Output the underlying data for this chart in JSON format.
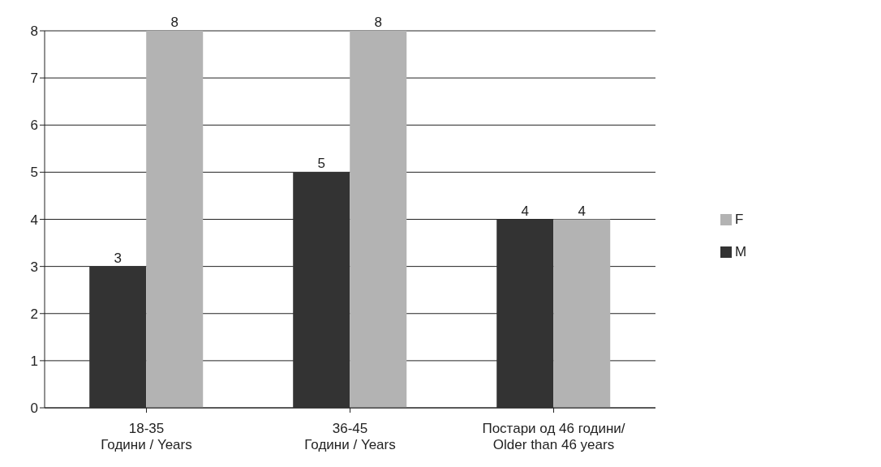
{
  "chart_data": {
    "type": "bar",
    "categories": [
      "18-35\nГодини / Years",
      "36-45\nГодини / Years",
      "Постари од 46 години/\nOlder than 46 years"
    ],
    "series": [
      {
        "name": "M",
        "color": "#333333",
        "values": [
          3,
          5,
          4
        ]
      },
      {
        "name": "F",
        "color": "#b3b3b3",
        "values": [
          8,
          8,
          4
        ]
      }
    ],
    "ylim": [
      0,
      8
    ],
    "yticks": [
      0,
      1,
      2,
      3,
      4,
      5,
      6,
      7,
      8
    ],
    "grid": "y",
    "legend": "right",
    "data_labels": true
  }
}
